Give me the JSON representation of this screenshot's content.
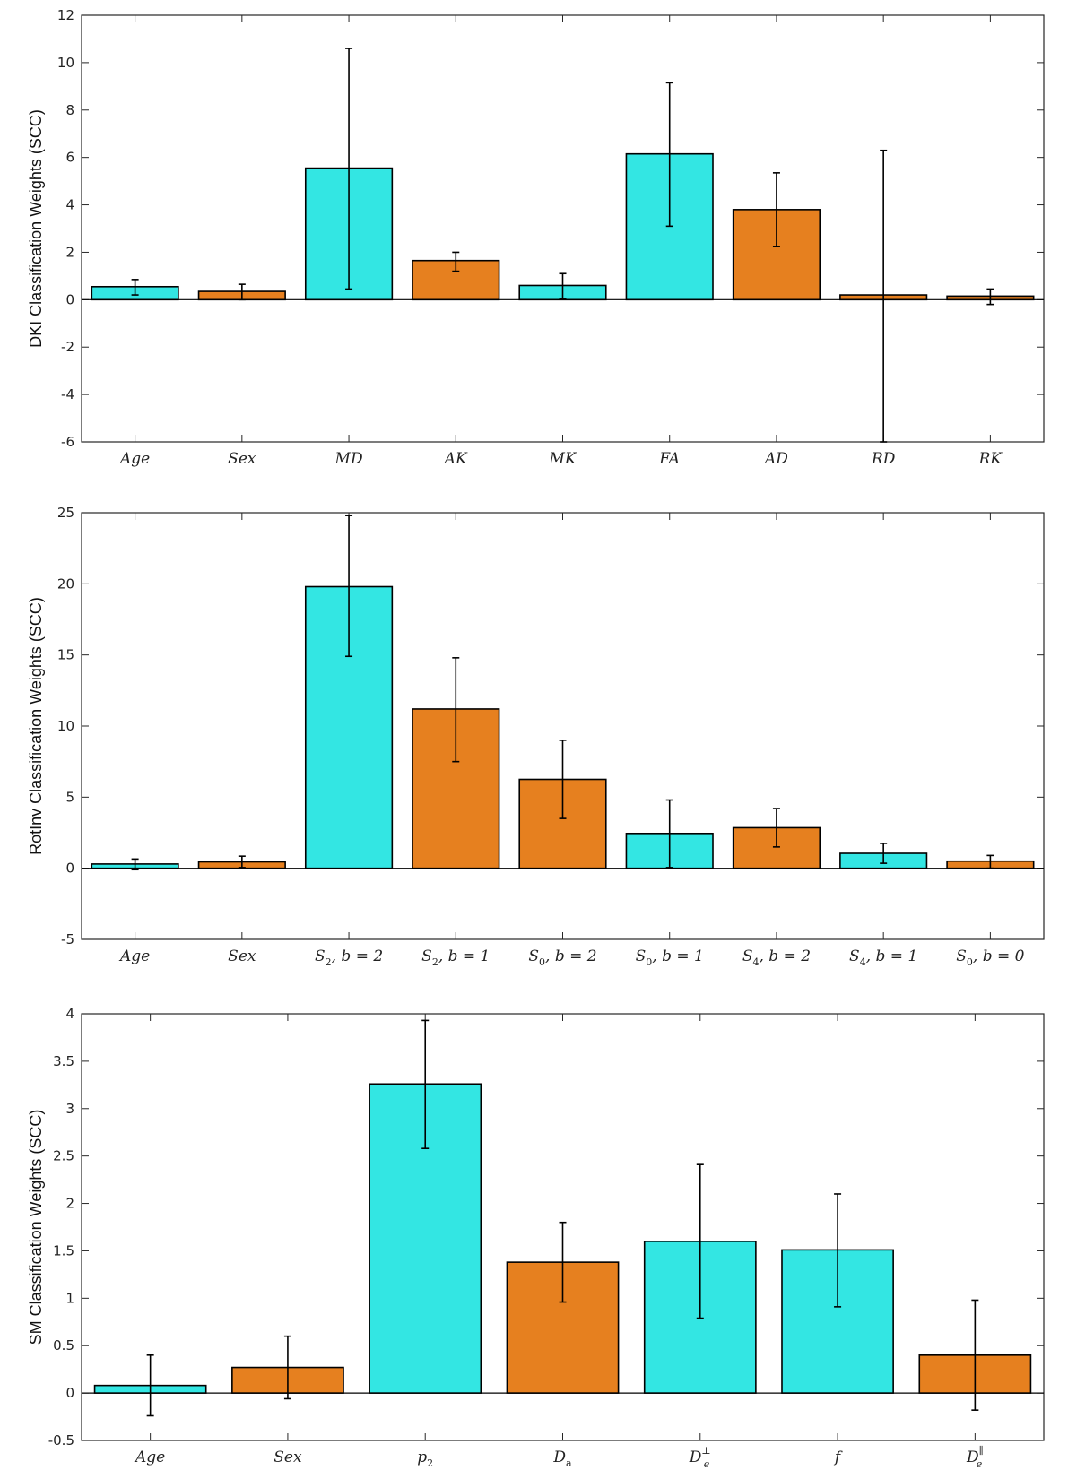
{
  "colors": {
    "cyan": "#33e6e3",
    "orange": "#e6801f"
  },
  "chart_data": [
    {
      "type": "bar",
      "ylabel": "DKI Classification Weights (SCC)",
      "ylim": [
        -6,
        12
      ],
      "yticks": [
        -6,
        -4,
        -2,
        0,
        2,
        4,
        6,
        8,
        10,
        12
      ],
      "categories": [
        {
          "base": "Age"
        },
        {
          "base": "Sex"
        },
        {
          "base": "MD"
        },
        {
          "base": "AK"
        },
        {
          "base": "MK"
        },
        {
          "base": "FA"
        },
        {
          "base": "AD"
        },
        {
          "base": "RD"
        },
        {
          "base": "RK"
        }
      ],
      "values": [
        0.55,
        0.35,
        5.55,
        1.65,
        0.6,
        6.15,
        3.8,
        0.2,
        0.15
      ],
      "err_low": [
        0.2,
        0.0,
        0.45,
        1.2,
        0.05,
        3.1,
        2.25,
        -6.0,
        -0.2
      ],
      "err_high": [
        0.85,
        0.65,
        10.6,
        2.0,
        1.1,
        9.15,
        5.35,
        6.3,
        0.45
      ],
      "bar_colors": [
        "cyan",
        "orange",
        "cyan",
        "orange",
        "cyan",
        "cyan",
        "orange",
        "orange",
        "orange"
      ]
    },
    {
      "type": "bar",
      "ylabel": "RotInv Classification Weights (SCC)",
      "ylim": [
        -5,
        25
      ],
      "yticks": [
        -5,
        0,
        5,
        10,
        15,
        20,
        25
      ],
      "categories": [
        {
          "base": "Age"
        },
        {
          "base": "Sex"
        },
        {
          "base": "S",
          "sub": "2",
          "rest": ", b = 2"
        },
        {
          "base": "S",
          "sub": "2",
          "rest": ", b = 1"
        },
        {
          "base": "S",
          "sub": "0",
          "rest": ", b = 2"
        },
        {
          "base": "S",
          "sub": "0",
          "rest": ", b = 1"
        },
        {
          "base": "S",
          "sub": "4",
          "rest": ", b = 2"
        },
        {
          "base": "S",
          "sub": "4",
          "rest": ", b = 1"
        },
        {
          "base": "S",
          "sub": "0",
          "rest": ", b = 0"
        }
      ],
      "values": [
        0.3,
        0.45,
        19.8,
        11.2,
        6.25,
        2.45,
        2.85,
        1.05,
        0.5
      ],
      "err_low": [
        -0.1,
        0.05,
        14.9,
        7.5,
        3.5,
        0.05,
        1.5,
        0.35,
        0.0
      ],
      "err_high": [
        0.65,
        0.85,
        24.8,
        14.8,
        9.0,
        4.8,
        4.2,
        1.75,
        0.9
      ],
      "bar_colors": [
        "cyan",
        "orange",
        "cyan",
        "orange",
        "orange",
        "cyan",
        "orange",
        "cyan",
        "orange"
      ]
    },
    {
      "type": "bar",
      "ylabel": "SM Classification Weights (SCC)",
      "ylim": [
        -0.5,
        4
      ],
      "yticks": [
        -0.5,
        0,
        0.5,
        1,
        1.5,
        2,
        2.5,
        3,
        3.5,
        4
      ],
      "categories": [
        {
          "base": "Age"
        },
        {
          "base": "Sex"
        },
        {
          "base": "p",
          "sub": "2"
        },
        {
          "base": "D",
          "sub": "a"
        },
        {
          "base": "D",
          "sub": "e",
          "sup": "⊥"
        },
        {
          "base": "f"
        },
        {
          "base": "D",
          "sub": "e",
          "sup": "∥"
        }
      ],
      "values": [
        0.08,
        0.27,
        3.26,
        1.38,
        1.6,
        1.51,
        0.4
      ],
      "err_low": [
        -0.24,
        -0.06,
        2.58,
        0.96,
        0.79,
        0.91,
        -0.18
      ],
      "err_high": [
        0.4,
        0.6,
        3.93,
        1.8,
        2.41,
        2.1,
        0.98
      ],
      "bar_colors": [
        "cyan",
        "orange",
        "cyan",
        "orange",
        "cyan",
        "cyan",
        "orange"
      ]
    }
  ]
}
